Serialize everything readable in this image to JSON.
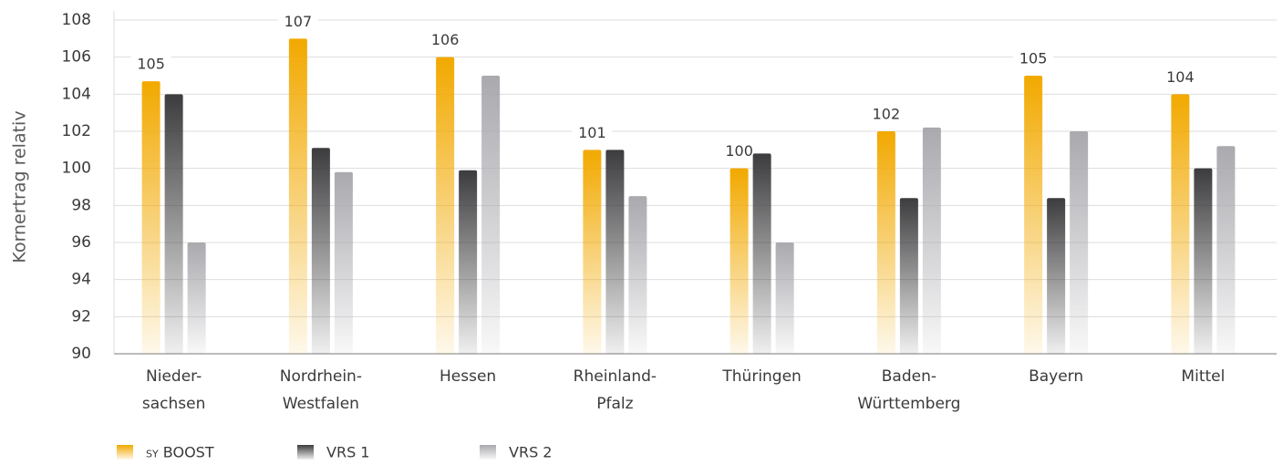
{
  "chart_data": {
    "type": "bar",
    "y_label": "Kornertrag relativ",
    "categories": [
      "Nieder-\nsachsen",
      "Nordrhein-\nWestfalen",
      "Hessen",
      "Rheinland-\nPfalz",
      "Thüringen",
      "Baden-\nWürttemberg",
      "Bayern",
      "Mittel"
    ],
    "series": [
      {
        "name": "sy BOOST",
        "color": "#f2a900",
        "values": [
          104.7,
          107,
          106,
          101,
          100,
          102,
          105,
          104
        ],
        "value_labels": [
          "105",
          "107",
          "106",
          "101",
          "100",
          "102",
          "105",
          "104"
        ]
      },
      {
        "name": "VRS 1",
        "color": "#3c3c3e",
        "values": [
          104,
          101.1,
          99.9,
          101,
          100.8,
          98.4,
          98.4,
          100
        ]
      },
      {
        "name": "VRS 2",
        "color": "#a9a9ae",
        "values": [
          96,
          99.8,
          105,
          98.5,
          96,
          102.2,
          102,
          101.2
        ]
      }
    ],
    "ylim": [
      90,
      108
    ],
    "yticks": [
      90,
      92,
      94,
      96,
      98,
      100,
      102,
      104,
      106,
      108
    ],
    "grid": true
  }
}
